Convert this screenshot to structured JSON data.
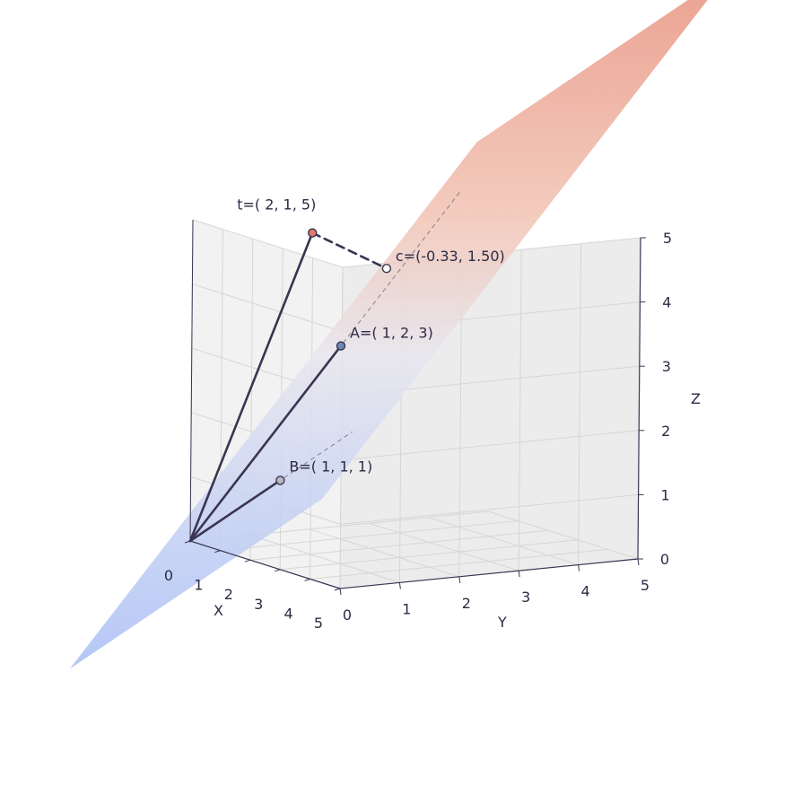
{
  "chart_data": {
    "type": "scatter",
    "projection": "3d",
    "axes": {
      "x": {
        "label": "X",
        "ticks": [
          "0",
          "1",
          "2",
          "3",
          "4",
          "5"
        ],
        "range": [
          0,
          5
        ]
      },
      "y": {
        "label": "Y",
        "ticks": [
          "0",
          "1",
          "2",
          "3",
          "4",
          "5"
        ],
        "range": [
          0,
          5
        ]
      },
      "z": {
        "label": "Z",
        "ticks": [
          "0",
          "1",
          "2",
          "3",
          "4",
          "5"
        ],
        "range": [
          0,
          5
        ]
      }
    },
    "grid": true,
    "plane": {
      "spanned_by": [
        "A",
        "B"
      ],
      "colormap": "coolwarm"
    },
    "points": [
      {
        "id": "t",
        "label": "t=( 2, 1, 5)",
        "coords": [
          2,
          1,
          5
        ],
        "color": "#e07a6a"
      },
      {
        "id": "c",
        "label": "c=(-0.33, 1.50)",
        "coords": [
          1.17,
          2.67,
          4.17
        ],
        "color": "#ffffff"
      },
      {
        "id": "A",
        "label": "A=( 1, 2, 3)",
        "coords": [
          1,
          2,
          3
        ],
        "color": "#6f86b5"
      },
      {
        "id": "B",
        "label": "B=( 1, 1, 1)",
        "coords": [
          1,
          1,
          1
        ],
        "color": "#b9b9c4"
      }
    ],
    "vectors": [
      {
        "from": [
          0,
          0,
          0
        ],
        "to": [
          2,
          1,
          5
        ],
        "style": "solid"
      },
      {
        "from": [
          0,
          0,
          0
        ],
        "to": [
          1,
          2,
          3
        ],
        "style": "solid"
      },
      {
        "from": [
          0,
          0,
          0
        ],
        "to": [
          1,
          1,
          1
        ],
        "style": "solid"
      },
      {
        "from": [
          2,
          1,
          5
        ],
        "to": [
          1.17,
          2.67,
          4.17
        ],
        "style": "dashed"
      }
    ],
    "extension_lines": [
      {
        "from": [
          0,
          0,
          0
        ],
        "to": [
          1.8,
          3.6,
          5.4
        ],
        "style": "dashed"
      },
      {
        "from": [
          0,
          0,
          0
        ],
        "to": [
          1.8,
          1.8,
          1.8
        ],
        "style": "dashed"
      }
    ]
  },
  "colors": {
    "vector": "#3a3553",
    "axis_line": "#3a3553",
    "pane": "#f2f2f2",
    "plane_top": "#e8907d",
    "plane_bottom": "#a9bdf5"
  }
}
